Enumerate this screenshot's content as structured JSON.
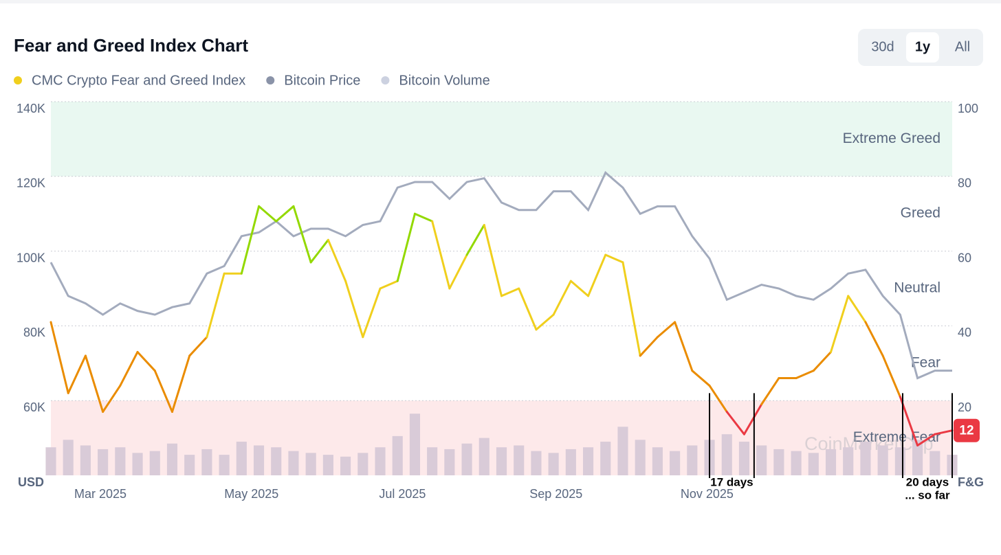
{
  "header": {
    "title": "Fear and Greed Index Chart",
    "buttons": [
      "30d",
      "1y",
      "All"
    ],
    "selected": 1
  },
  "chart_data": {
    "type": "line",
    "x": [
      0,
      7,
      14,
      21,
      28,
      35,
      42,
      49,
      56,
      63,
      70,
      77,
      84,
      91,
      98,
      105,
      112,
      119,
      126,
      133,
      140,
      147,
      154,
      161,
      168,
      175,
      182,
      189,
      196,
      203,
      210,
      217,
      224,
      231,
      238,
      245,
      252,
      259,
      266,
      273,
      280,
      287,
      294,
      301,
      308,
      315,
      322,
      329,
      336,
      343,
      350,
      357,
      364
    ],
    "xlim": [
      0,
      364
    ],
    "xticks": [
      {
        "value": 20,
        "label": "Mar 2025"
      },
      {
        "value": 81,
        "label": "May 2025"
      },
      {
        "value": 142,
        "label": "Jul 2025"
      },
      {
        "value": 204,
        "label": "Sep 2025"
      },
      {
        "value": 265,
        "label": "Nov 2025"
      }
    ],
    "ylim": [
      40000,
      140000
    ],
    "yticks": [
      {
        "value": 60000,
        "label": "60K"
      },
      {
        "value": 80000,
        "label": "80K"
      },
      {
        "value": 100000,
        "label": "100K"
      },
      {
        "value": 120000,
        "label": "120K"
      },
      {
        "value": 140000,
        "label": "140K"
      }
    ],
    "ylabel": "USD",
    "y2lim": [
      0,
      100
    ],
    "y2ticks": [
      20,
      40,
      60,
      80,
      100
    ],
    "y2label": "F&G",
    "y3lim": [
      0,
      400
    ],
    "grid": true,
    "series": [
      {
        "name": "CMC Crypto Fear and Greed Index",
        "color": "#f0cf1d",
        "axis": "y2",
        "values": [
          41,
          22,
          32,
          17,
          24,
          33,
          28,
          17,
          32,
          37,
          54,
          54,
          72,
          68,
          72,
          57,
          63,
          52,
          37,
          50,
          52,
          70,
          68,
          50,
          59,
          67,
          48,
          50,
          39,
          43,
          52,
          48,
          59,
          57,
          32,
          37,
          41,
          28,
          24,
          17,
          11,
          19,
          26,
          26,
          28,
          33,
          48,
          41,
          32,
          21,
          8,
          11,
          12
        ]
      },
      {
        "name": "Bitcoin Price",
        "color": "#8a93a8",
        "line_color": "#a3abbd",
        "values": [
          97000,
          88000,
          86000,
          83000,
          86000,
          84000,
          83000,
          85000,
          86000,
          94000,
          96000,
          104000,
          105000,
          108000,
          104000,
          106000,
          106000,
          104000,
          107000,
          108000,
          117000,
          118500,
          118500,
          114000,
          118500,
          119500,
          113000,
          111000,
          111000,
          116000,
          116000,
          111000,
          121000,
          117000,
          110000,
          112000,
          112000,
          104000,
          98000,
          87000,
          89000,
          91000,
          90000,
          88000,
          87000,
          90000,
          94000,
          95000,
          88000,
          83000,
          66000,
          68000,
          68000
        ]
      },
      {
        "name": "Bitcoin Volume",
        "color": "#ccd1e0",
        "bar_color": "#d9cbd8",
        "axis": "y3",
        "values": [
          30,
          38,
          32,
          28,
          30,
          24,
          26,
          34,
          22,
          28,
          22,
          36,
          32,
          30,
          26,
          24,
          22,
          20,
          24,
          30,
          42,
          66,
          30,
          28,
          34,
          40,
          30,
          32,
          26,
          24,
          28,
          30,
          36,
          52,
          38,
          30,
          26,
          32,
          38,
          44,
          36,
          32,
          28,
          26,
          24,
          28,
          30,
          36,
          32,
          30,
          38,
          26,
          22
        ]
      }
    ],
    "bands": [
      {
        "from": 0,
        "to": 20,
        "label": "Extreme Fear",
        "color": "#ea3943",
        "shade": "#fde9ea"
      },
      {
        "from": 20,
        "to": 40,
        "label": "Fear",
        "color": "#ea8c00"
      },
      {
        "from": 40,
        "to": 60,
        "label": "Neutral",
        "color": "#f0cf1d"
      },
      {
        "from": 60,
        "to": 80,
        "label": "Greed",
        "color": "#93d900"
      },
      {
        "from": 80,
        "to": 100,
        "label": "Extreme Greed",
        "color": "#16c784",
        "shade": "#e9f8f1"
      }
    ],
    "annotations": [
      {
        "from": 266,
        "to": 284,
        "lines": [
          "17 days"
        ]
      },
      {
        "from": 344,
        "to": 364,
        "lines": [
          "20 days",
          "... so far"
        ]
      }
    ],
    "watermark": "CoinMarketCap"
  }
}
